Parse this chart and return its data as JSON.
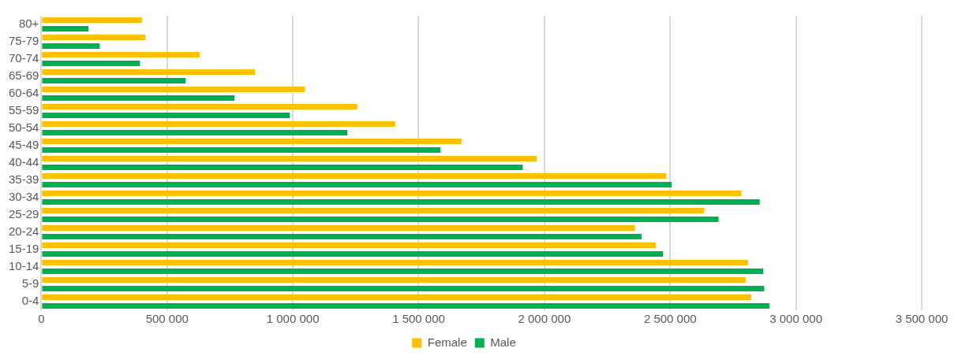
{
  "chart_data": {
    "type": "bar",
    "orientation": "horizontal",
    "categories": [
      "80+",
      "75-79",
      "70-74",
      "65-69",
      "60-64",
      "55-59",
      "50-54",
      "45-49",
      "40-44",
      "35-39",
      "30-34",
      "25-29",
      "20-24",
      "15-19",
      "10-14",
      "5-9",
      "0-4"
    ],
    "series": [
      {
        "name": "Female",
        "color": "#ffc000",
        "values": [
          400000,
          414000,
          630000,
          849000,
          1048000,
          1256000,
          1407000,
          1670000,
          1970000,
          2485000,
          2783000,
          2636000,
          2360000,
          2442000,
          2809000,
          2800000,
          2822000
        ]
      },
      {
        "name": "Male",
        "color": "#00b050",
        "values": [
          188000,
          232000,
          392000,
          574000,
          768000,
          988000,
          1217000,
          1587000,
          1914000,
          2506000,
          2856000,
          2692000,
          2386000,
          2472000,
          2870000,
          2874000,
          2894000
        ]
      }
    ],
    "xlim": [
      0,
      3500000
    ],
    "xticks": [
      0,
      {
        "value": 500000,
        "label": "500 000"
      },
      {
        "value": 1000000,
        "label": "1 000 000"
      },
      {
        "value": 1500000,
        "label": "1 500 000"
      },
      {
        "value": 2000000,
        "label": "2 000 000"
      },
      {
        "value": 2500000,
        "label": "2 500 000"
      },
      {
        "value": 3000000,
        "label": "3 000 000"
      },
      {
        "value": 3500000,
        "label": "3 500 000"
      }
    ],
    "grid": "x",
    "legend": "bottom"
  }
}
